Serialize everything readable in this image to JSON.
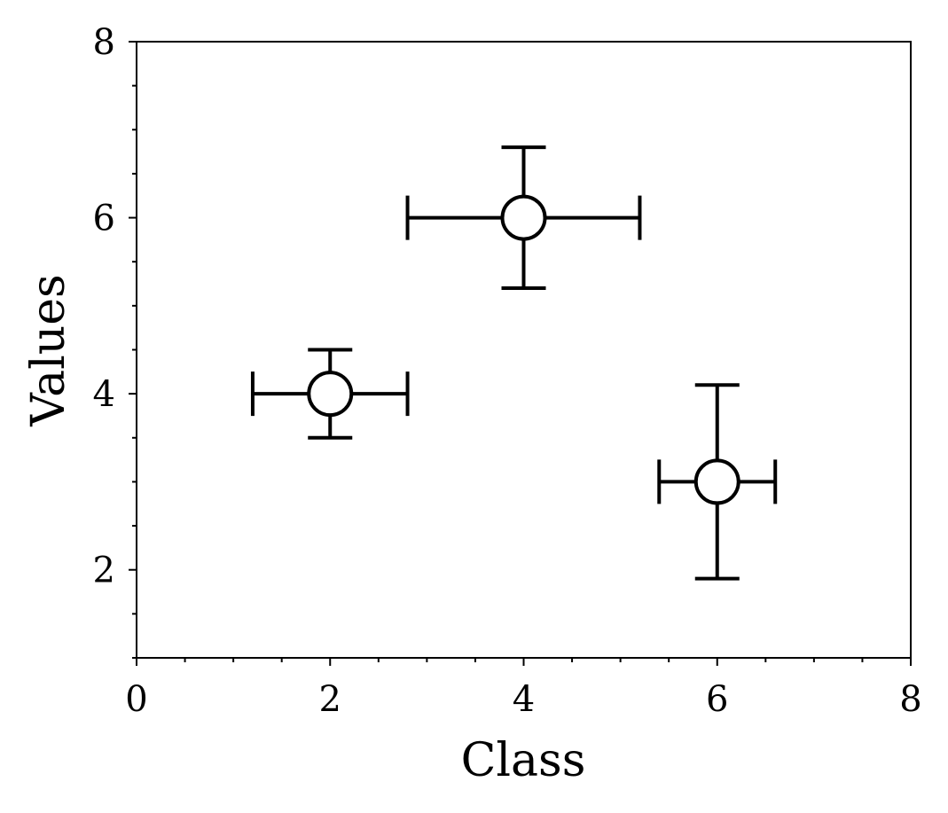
{
  "chart_data": {
    "type": "scatter",
    "title": "",
    "xlabel": "Class",
    "ylabel": "Values",
    "xlim": [
      0,
      8
    ],
    "ylim": [
      1,
      8
    ],
    "x_ticks": [
      0,
      2,
      4,
      6,
      8
    ],
    "y_ticks": [
      2,
      4,
      6,
      8
    ],
    "x_minor_step": 0.5,
    "y_minor_step": 0.5,
    "grid": false,
    "marker": "open-circle",
    "points": [
      {
        "x": 2,
        "y": 4,
        "xerr": 0.8,
        "yerr": 0.5
      },
      {
        "x": 4,
        "y": 6,
        "xerr": 1.2,
        "yerr": 0.8
      },
      {
        "x": 6,
        "y": 3,
        "xerr": 0.6,
        "yerr": 1.1
      }
    ],
    "colors": {
      "stroke": "#000000",
      "marker_fill": "#ffffff"
    }
  }
}
